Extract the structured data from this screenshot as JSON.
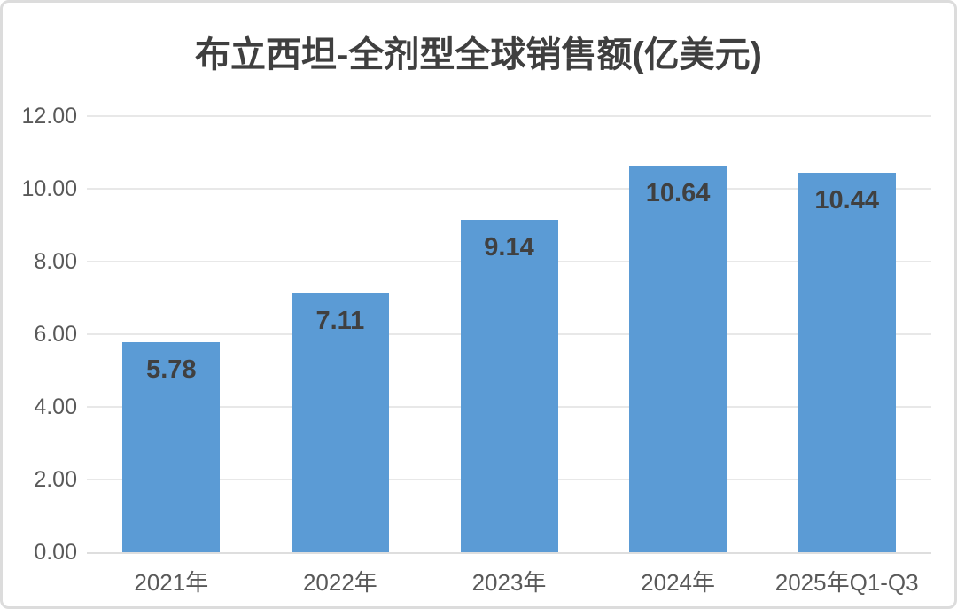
{
  "chart_data": {
    "type": "bar",
    "title": "布立西坦-全剂型全球销售额(亿美元)",
    "categories": [
      "2021年",
      "2022年",
      "2023年",
      "2024年",
      "2025年Q1-Q3"
    ],
    "values": [
      5.78,
      7.11,
      9.14,
      10.64,
      10.44
    ],
    "value_labels": [
      "5.78",
      "7.11",
      "9.14",
      "10.64",
      "10.44"
    ],
    "y_ticks": [
      "12.00",
      "10.00",
      "8.00",
      "6.00",
      "4.00",
      "2.00",
      "0.00"
    ],
    "ylim": [
      0,
      12
    ],
    "xlabel": "",
    "ylabel": "",
    "grid": true,
    "legend_position": "none",
    "bar_color": "#5b9bd5",
    "value_label_color": "#404040",
    "axis_text_color": "#595959",
    "gridline_color": "#e8e8e8",
    "axis_line_color": "#dedede",
    "title_color": "#3f3f3f",
    "card_border_color": "#dcdcdc",
    "background_color": "#ffffff"
  }
}
